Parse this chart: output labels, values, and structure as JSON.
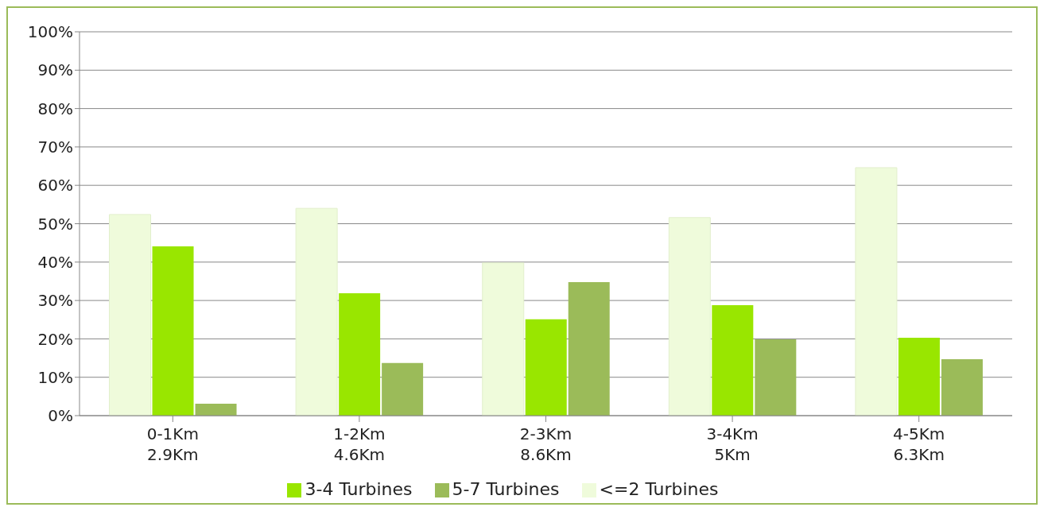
{
  "chart_data": {
    "type": "bar",
    "categories": [
      "0-1Km\n2.9Km",
      "1-2Km\n4.6Km",
      "2-3Km\n8.6Km",
      "3-4Km\n5Km",
      "4-5Km\n6.3Km"
    ],
    "series": [
      {
        "name": "<=2 Turbines",
        "color": "#effbdb",
        "values": [
          52.4,
          54,
          39.8,
          51.6,
          64.6
        ]
      },
      {
        "name": "3-4 Turbines",
        "color": "#99e600",
        "values": [
          44.1,
          31.9,
          25.1,
          28.8,
          20.3
        ]
      },
      {
        "name": "5-7 Turbines",
        "color": "#9bbb59",
        "values": [
          3.1,
          13.7,
          34.8,
          19.9,
          14.7
        ]
      }
    ],
    "ylim": [
      0,
      100
    ],
    "yticks": [
      {
        "value": 0,
        "label": "0%"
      },
      {
        "value": 10,
        "label": "10%"
      },
      {
        "value": 20,
        "label": "20%"
      },
      {
        "value": 30,
        "label": "30%"
      },
      {
        "value": 40,
        "label": "40%"
      },
      {
        "value": 50,
        "label": "50%"
      },
      {
        "value": 60,
        "label": "60%"
      },
      {
        "value": 70,
        "label": "70%"
      },
      {
        "value": 80,
        "label": "80%"
      },
      {
        "value": 90,
        "label": "90%"
      },
      {
        "value": 100,
        "label": "100%"
      }
    ],
    "grid": "y",
    "legend": "bottom"
  }
}
